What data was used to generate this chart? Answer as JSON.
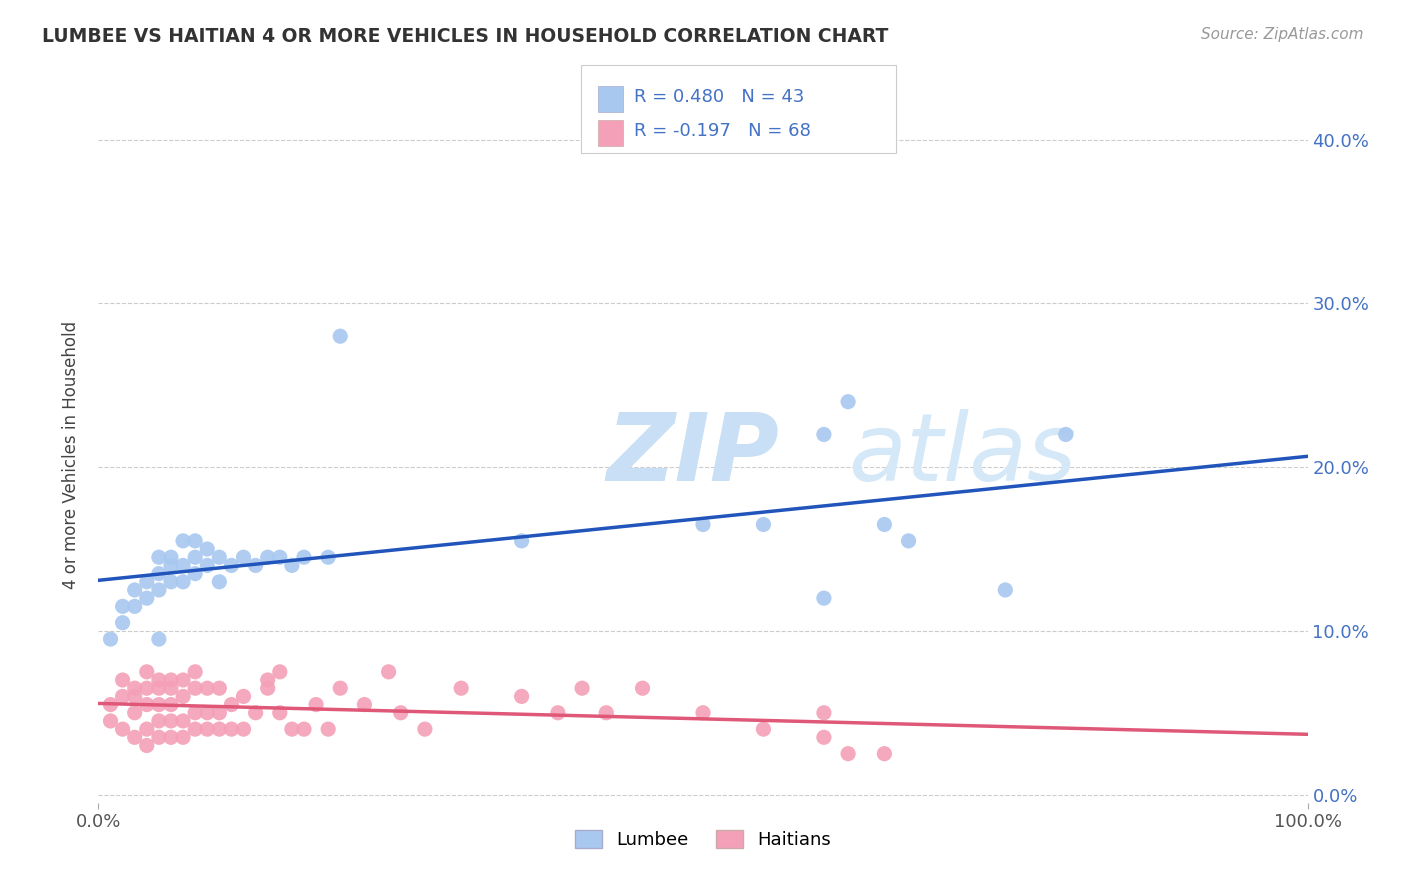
{
  "title": "LUMBEE VS HAITIAN 4 OR MORE VEHICLES IN HOUSEHOLD CORRELATION CHART",
  "source": "Source: ZipAtlas.com",
  "ylabel": "4 or more Vehicles in Household",
  "ytick_values": [
    0.0,
    0.1,
    0.2,
    0.3,
    0.4
  ],
  "xlim": [
    0.0,
    1.0
  ],
  "ylim": [
    -0.005,
    0.42
  ],
  "lumbee_color": "#a8c8f0",
  "haitian_color": "#f4a0b8",
  "lumbee_line_color": "#2255bb",
  "haitian_line_color": "#e05878",
  "haitian_line_dashed_color": "#f0b0c0",
  "watermark_color": "#ddeeff",
  "background_color": "#ffffff",
  "lumbee_x": [
    0.01,
    0.02,
    0.02,
    0.03,
    0.03,
    0.04,
    0.04,
    0.05,
    0.05,
    0.05,
    0.06,
    0.06,
    0.06,
    0.07,
    0.07,
    0.07,
    0.08,
    0.08,
    0.08,
    0.09,
    0.09,
    0.1,
    0.1,
    0.11,
    0.12,
    0.13,
    0.14,
    0.15,
    0.16,
    0.17,
    0.19,
    0.2,
    0.35,
    0.5,
    0.55,
    0.6,
    0.62,
    0.65,
    0.67,
    0.75,
    0.8,
    0.6,
    0.05
  ],
  "lumbee_y": [
    0.095,
    0.115,
    0.105,
    0.125,
    0.115,
    0.13,
    0.12,
    0.145,
    0.135,
    0.125,
    0.14,
    0.13,
    0.145,
    0.14,
    0.13,
    0.155,
    0.145,
    0.135,
    0.155,
    0.14,
    0.15,
    0.13,
    0.145,
    0.14,
    0.145,
    0.14,
    0.145,
    0.145,
    0.14,
    0.145,
    0.145,
    0.28,
    0.155,
    0.165,
    0.165,
    0.22,
    0.24,
    0.165,
    0.155,
    0.125,
    0.22,
    0.12,
    0.095
  ],
  "haitian_x": [
    0.01,
    0.01,
    0.02,
    0.02,
    0.02,
    0.03,
    0.03,
    0.03,
    0.03,
    0.04,
    0.04,
    0.04,
    0.04,
    0.04,
    0.05,
    0.05,
    0.05,
    0.05,
    0.05,
    0.06,
    0.06,
    0.06,
    0.06,
    0.06,
    0.07,
    0.07,
    0.07,
    0.07,
    0.08,
    0.08,
    0.08,
    0.08,
    0.09,
    0.09,
    0.09,
    0.1,
    0.1,
    0.1,
    0.11,
    0.11,
    0.12,
    0.12,
    0.13,
    0.14,
    0.14,
    0.15,
    0.15,
    0.16,
    0.17,
    0.18,
    0.19,
    0.2,
    0.22,
    0.24,
    0.25,
    0.27,
    0.3,
    0.35,
    0.38,
    0.4,
    0.42,
    0.45,
    0.5,
    0.55,
    0.6,
    0.62,
    0.65,
    0.6
  ],
  "haitian_y": [
    0.045,
    0.055,
    0.04,
    0.06,
    0.07,
    0.035,
    0.05,
    0.06,
    0.065,
    0.03,
    0.04,
    0.055,
    0.065,
    0.075,
    0.035,
    0.045,
    0.055,
    0.065,
    0.07,
    0.035,
    0.045,
    0.055,
    0.065,
    0.07,
    0.035,
    0.045,
    0.06,
    0.07,
    0.04,
    0.05,
    0.065,
    0.075,
    0.04,
    0.05,
    0.065,
    0.04,
    0.05,
    0.065,
    0.04,
    0.055,
    0.04,
    0.06,
    0.05,
    0.07,
    0.065,
    0.075,
    0.05,
    0.04,
    0.04,
    0.055,
    0.04,
    0.065,
    0.055,
    0.075,
    0.05,
    0.04,
    0.065,
    0.06,
    0.05,
    0.065,
    0.05,
    0.065,
    0.05,
    0.04,
    0.035,
    0.025,
    0.025,
    0.05
  ]
}
